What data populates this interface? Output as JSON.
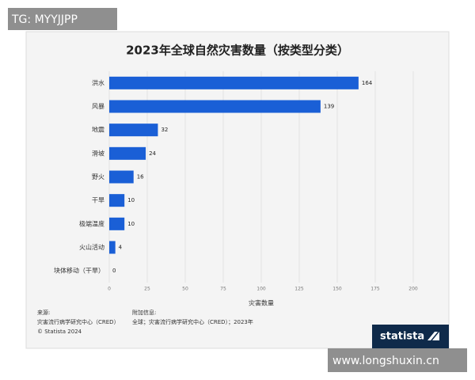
{
  "watermark_top": "TG: MYYJJPP",
  "watermark_bottom": "www.longshuxin.cn",
  "logo": "statista",
  "chart_data": {
    "type": "bar",
    "orientation": "horizontal",
    "title": "2023年全球自然灾害数量（按类型分类）",
    "categories": [
      "洪水",
      "风暴",
      "地震",
      "滑坡",
      "野火",
      "干旱",
      "极端温度",
      "火山活动",
      "块体移动（干旱）"
    ],
    "values": [
      164,
      139,
      32,
      24,
      16,
      10,
      10,
      4,
      0
    ],
    "color": "#1a5fd6",
    "xlim": [
      0,
      200
    ],
    "xticks": [
      0,
      25,
      50,
      75,
      100,
      125,
      150,
      175,
      200
    ],
    "x_label": "灾害数量",
    "grid": true,
    "source_label": "来源:",
    "source": "灾害流行病学研究中心（CRED）",
    "copyright": "© Statista 2024",
    "info_label": "附加信息:",
    "info": "全球；灾害流行病学研究中心（CRED）；2023年"
  }
}
